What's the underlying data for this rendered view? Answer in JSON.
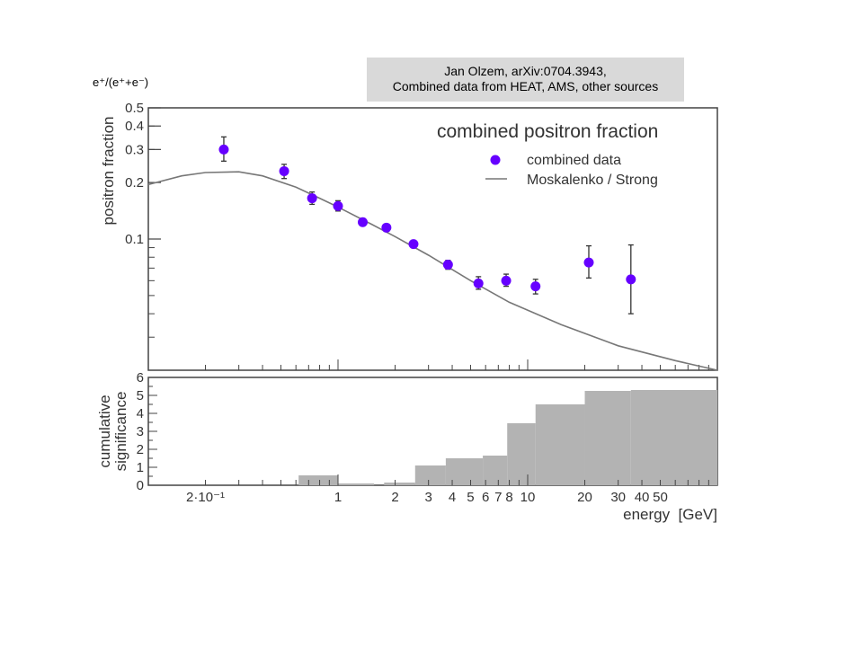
{
  "caption": {
    "line1": "Jan Olzem, arXiv:0704.3943,",
    "line2": "Combined data from HEAT, AMS, other sources"
  },
  "y_label_annotation": {
    "text": "e⁺/(e⁺+e⁻)"
  },
  "chart_data": [
    {
      "type": "scatter",
      "title": "combined positron fraction",
      "ylabel": "positron fraction",
      "xlabel": "energy  [GeV]",
      "xscale": "log",
      "yscale": "log",
      "xlim": [
        0.1,
        100
      ],
      "ylim": [
        0.02,
        0.5
      ],
      "yticks": [
        {
          "v": 0.5,
          "label": "0.5"
        },
        {
          "v": 0.4,
          "label": "0.4"
        },
        {
          "v": 0.3,
          "label": "0.3"
        },
        {
          "v": 0.2,
          "label": "0.2"
        },
        {
          "v": 0.1,
          "label": "0.1"
        }
      ],
      "legend": {
        "placement": "top-right",
        "entries": [
          {
            "name": "combined data",
            "marker": "circle",
            "color": "#6600ff"
          },
          {
            "name": "Moskalenko / Strong",
            "marker": "line",
            "color": "#777777"
          }
        ]
      },
      "series": [
        {
          "name": "combined data",
          "color": "#6600ff",
          "points": [
            {
              "x": 0.25,
              "y": 0.3,
              "ylo": 0.26,
              "yhi": 0.35
            },
            {
              "x": 0.52,
              "y": 0.23,
              "ylo": 0.21,
              "yhi": 0.25
            },
            {
              "x": 0.73,
              "y": 0.165,
              "ylo": 0.153,
              "yhi": 0.178
            },
            {
              "x": 1.0,
              "y": 0.15,
              "ylo": 0.141,
              "yhi": 0.16
            },
            {
              "x": 1.35,
              "y": 0.123,
              "ylo": 0.119,
              "yhi": 0.127
            },
            {
              "x": 1.8,
              "y": 0.115,
              "ylo": 0.111,
              "yhi": 0.119
            },
            {
              "x": 2.5,
              "y": 0.094,
              "ylo": 0.091,
              "yhi": 0.097
            },
            {
              "x": 3.8,
              "y": 0.073,
              "ylo": 0.069,
              "yhi": 0.077
            },
            {
              "x": 5.5,
              "y": 0.058,
              "ylo": 0.054,
              "yhi": 0.063
            },
            {
              "x": 7.7,
              "y": 0.06,
              "ylo": 0.056,
              "yhi": 0.065
            },
            {
              "x": 11.0,
              "y": 0.056,
              "ylo": 0.051,
              "yhi": 0.061
            },
            {
              "x": 21.0,
              "y": 0.075,
              "ylo": 0.062,
              "yhi": 0.092
            },
            {
              "x": 35.0,
              "y": 0.061,
              "ylo": 0.04,
              "yhi": 0.093
            }
          ]
        },
        {
          "name": "Moskalenko / Strong",
          "color": "#777777",
          "line": [
            {
              "x": 0.1,
              "y": 0.195
            },
            {
              "x": 0.15,
              "y": 0.217
            },
            {
              "x": 0.2,
              "y": 0.226
            },
            {
              "x": 0.3,
              "y": 0.228
            },
            {
              "x": 0.4,
              "y": 0.217
            },
            {
              "x": 0.6,
              "y": 0.189
            },
            {
              "x": 0.8,
              "y": 0.165
            },
            {
              "x": 1.0,
              "y": 0.148
            },
            {
              "x": 1.5,
              "y": 0.12
            },
            {
              "x": 2.0,
              "y": 0.103
            },
            {
              "x": 3.0,
              "y": 0.082
            },
            {
              "x": 5.0,
              "y": 0.06
            },
            {
              "x": 8.0,
              "y": 0.046
            },
            {
              "x": 15.0,
              "y": 0.035
            },
            {
              "x": 30.0,
              "y": 0.027
            },
            {
              "x": 60.0,
              "y": 0.0225
            },
            {
              "x": 100.0,
              "y": 0.02
            }
          ]
        }
      ]
    },
    {
      "type": "area",
      "ylabel": "cumulative significance",
      "xlabel": "energy  [GeV]",
      "xscale": "log",
      "xlim": [
        0.1,
        100
      ],
      "ylim": [
        0,
        6
      ],
      "yticks": [
        0,
        1,
        2,
        3,
        4,
        5,
        6
      ],
      "xticks": [
        {
          "v": 0.2,
          "label": "2·10⁻¹"
        },
        {
          "v": 1,
          "label": "1"
        },
        {
          "v": 2,
          "label": "2"
        },
        {
          "v": 3,
          "label": "3"
        },
        {
          "v": 4,
          "label": "4"
        },
        {
          "v": 5,
          "label": "5"
        },
        {
          "v": 6,
          "label": "6"
        },
        {
          "v": 7,
          "label": "7"
        },
        {
          "v": 8,
          "label": "8"
        },
        {
          "v": 10,
          "label": "10"
        },
        {
          "v": 20,
          "label": "20"
        },
        {
          "v": 30,
          "label": "30"
        },
        {
          "v": 40,
          "label": "40"
        },
        {
          "v": 50,
          "label": "50"
        }
      ],
      "bins": [
        {
          "x0": 0.62,
          "x1": 1.0,
          "value": 0.55
        },
        {
          "x0": 1.0,
          "x1": 1.55,
          "value": 0.1
        },
        {
          "x0": 1.75,
          "x1": 2.55,
          "value": 0.15
        },
        {
          "x0": 2.55,
          "x1": 3.7,
          "value": 1.1
        },
        {
          "x0": 3.7,
          "x1": 5.8,
          "value": 1.5
        },
        {
          "x0": 5.8,
          "x1": 7.8,
          "value": 1.65
        },
        {
          "x0": 7.8,
          "x1": 11.0,
          "value": 3.45
        },
        {
          "x0": 11.0,
          "x1": 20.0,
          "value": 4.5
        },
        {
          "x0": 20.0,
          "x1": 35.0,
          "value": 5.25
        },
        {
          "x0": 35.0,
          "x1": 100.0,
          "value": 5.3
        }
      ],
      "fill_color": "#b3b3b3"
    }
  ]
}
